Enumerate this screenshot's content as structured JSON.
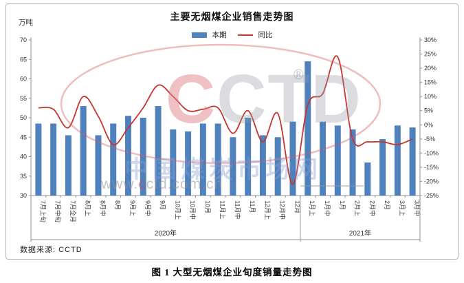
{
  "header": {
    "title": "主要无烟煤企业销售走势图",
    "unit_label": "万吨"
  },
  "legend": {
    "current_label": "本期",
    "yoy_label": "同比",
    "bar_color": "#4f81bd",
    "line_color": "#c5342d"
  },
  "chart_data": {
    "type": "bar+line",
    "title": "主要无烟煤企业销售走势图",
    "categories": [
      "7月上旬",
      "7月中旬",
      "7月全月",
      "8月上",
      "8月中",
      "8月",
      "9月上",
      "9月中",
      "9月",
      "10月上",
      "10月中",
      "10月",
      "11月上",
      "11月中",
      "11月",
      "12月上",
      "12月中",
      "12月",
      "1月上",
      "1月中",
      "1月",
      "2月上",
      "2月中",
      "2月",
      "3月上",
      "3月中"
    ],
    "series": [
      {
        "name": "本期",
        "type": "bar",
        "axis": "left",
        "unit": "万吨",
        "color": "#4f81bd",
        "values": [
          48.5,
          48.5,
          45.5,
          53,
          45.5,
          48.5,
          50.5,
          50,
          53,
          47,
          46.5,
          48.5,
          48.5,
          45,
          50,
          45.5,
          45,
          49,
          64.5,
          49,
          48,
          47,
          38.5,
          44.5,
          48,
          47.5
        ]
      },
      {
        "name": "同比",
        "type": "line",
        "axis": "right",
        "unit": "%",
        "color": "#c5342d",
        "values": [
          6,
          5.5,
          -1,
          10,
          3,
          -7,
          -1,
          6,
          14,
          10,
          5,
          5.5,
          6,
          -3,
          5,
          -6,
          4,
          -21,
          7,
          11,
          24,
          -5,
          -6,
          -6,
          -7,
          -5
        ]
      }
    ],
    "left_axis": {
      "min": 30,
      "max": 70,
      "step": 5,
      "tick_labels": [
        "70",
        "65",
        "60",
        "55",
        "50",
        "45",
        "40",
        "35",
        "30"
      ]
    },
    "right_axis": {
      "min": -25,
      "max": 30,
      "step": 5,
      "tick_labels": [
        "30%",
        "25%",
        "20%",
        "15%",
        "10%",
        "5%",
        "0%",
        "-5%",
        "-10%",
        "-15%",
        "-20%",
        "-25%"
      ]
    },
    "year_groups": [
      {
        "label": "2020年",
        "from": 0,
        "to": 17
      },
      {
        "label": "2021年",
        "from": 18,
        "to": 25
      }
    ],
    "grid": false,
    "legend_position": "top"
  },
  "watermark": {
    "logo": "CCTD",
    "registered": "®",
    "cn_text": "中国煤炭市场网",
    "url": "www.cctd.com.cn"
  },
  "footer": {
    "source": "数据来源: CCTD",
    "caption": "图 1 大型无烟煤企业旬度销量走势图"
  }
}
